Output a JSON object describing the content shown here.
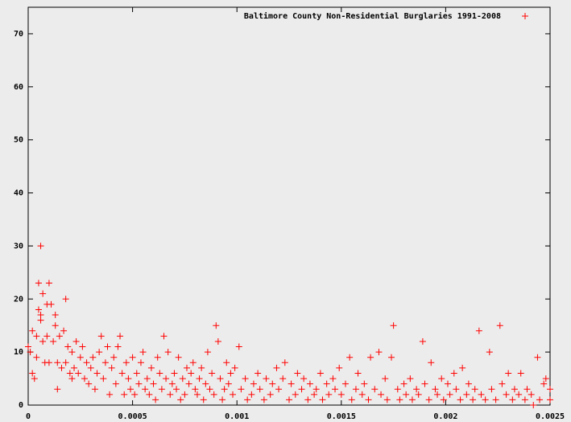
{
  "chart_data": {
    "type": "scatter",
    "x": [
      0,
      1e-05,
      2e-05,
      2e-05,
      3e-05,
      4e-05,
      4e-05,
      5e-05,
      5e-05,
      6e-05,
      6e-05,
      6e-05,
      7e-05,
      7e-05,
      8e-05,
      9e-05,
      9e-05,
      0.0001,
      0.0001,
      0.00011,
      0.00012,
      0.00013,
      0.00013,
      0.00014,
      0.00014,
      0.00015,
      0.00016,
      0.00017,
      0.00018,
      0.00018,
      0.00019,
      0.0002,
      0.00021,
      0.00021,
      0.00022,
      0.00023,
      0.00024,
      0.00025,
      0.00026,
      0.00027,
      0.00028,
      0.00029,
      0.0003,
      0.00031,
      0.00032,
      0.00033,
      0.00034,
      0.00035,
      0.00036,
      0.00037,
      0.00038,
      0.00039,
      0.0004,
      0.00041,
      0.00042,
      0.00043,
      0.00044,
      0.00045,
      0.00046,
      0.00047,
      0.00048,
      0.00049,
      0.0005,
      0.00051,
      0.00052,
      0.00053,
      0.00054,
      0.00055,
      0.00056,
      0.00057,
      0.00058,
      0.00059,
      0.0006,
      0.00061,
      0.00062,
      0.00063,
      0.00064,
      0.00065,
      0.00066,
      0.00067,
      0.00068,
      0.00069,
      0.0007,
      0.00071,
      0.00072,
      0.00073,
      0.00074,
      0.00075,
      0.00076,
      0.00077,
      0.00078,
      0.00079,
      0.0008,
      0.00081,
      0.00082,
      0.00083,
      0.00084,
      0.00085,
      0.00086,
      0.00087,
      0.00088,
      0.00089,
      0.0009,
      0.00091,
      0.00092,
      0.00093,
      0.00094,
      0.00095,
      0.00096,
      0.00097,
      0.00098,
      0.00099,
      0.00101,
      0.00102,
      0.00104,
      0.00105,
      0.00107,
      0.00108,
      0.0011,
      0.00111,
      0.00113,
      0.00114,
      0.00116,
      0.00117,
      0.00119,
      0.0012,
      0.00122,
      0.00123,
      0.00125,
      0.00126,
      0.00128,
      0.00129,
      0.00131,
      0.00132,
      0.00134,
      0.00135,
      0.00137,
      0.00138,
      0.0014,
      0.00141,
      0.00143,
      0.00144,
      0.00146,
      0.00147,
      0.00149,
      0.0015,
      0.00152,
      0.00154,
      0.00155,
      0.00157,
      0.00158,
      0.0016,
      0.00161,
      0.00163,
      0.00164,
      0.00166,
      0.00168,
      0.00169,
      0.00171,
      0.00172,
      0.00174,
      0.00175,
      0.00177,
      0.00178,
      0.0018,
      0.00181,
      0.00183,
      0.00184,
      0.00186,
      0.00187,
      0.00189,
      0.0019,
      0.00192,
      0.00193,
      0.00195,
      0.00196,
      0.00198,
      0.00199,
      0.00201,
      0.00202,
      0.00204,
      0.00205,
      0.00207,
      0.00208,
      0.0021,
      0.00211,
      0.00213,
      0.00214,
      0.00216,
      0.00217,
      0.00219,
      0.00221,
      0.00222,
      0.00224,
      0.00226,
      0.00227,
      0.00229,
      0.0023,
      0.00232,
      0.00233,
      0.00235,
      0.00236,
      0.00238,
      0.00239,
      0.00241,
      0.00242,
      0.00244,
      0.00245,
      0.00247,
      0.00248,
      0.0025,
      0.0025
    ],
    "series": [
      {
        "name": "Baltimore County Non-Residential Burglaries 1991-2008",
        "color": "#ff0000",
        "values": [
          11,
          10,
          6,
          14,
          5,
          9,
          13,
          23,
          18,
          17,
          16,
          30,
          21,
          12,
          8,
          19,
          13,
          23,
          8,
          19,
          12,
          15,
          17,
          3,
          8,
          13,
          7,
          14,
          20,
          8,
          11,
          6,
          10,
          5,
          7,
          12,
          6,
          9,
          11,
          5,
          8,
          4,
          7,
          9,
          3,
          6,
          10,
          13,
          5,
          8,
          11,
          2,
          7,
          9,
          4,
          11,
          13,
          6,
          2,
          8,
          5,
          3,
          9,
          2,
          6,
          4,
          8,
          10,
          3,
          5,
          2,
          7,
          4,
          1,
          9,
          6,
          3,
          13,
          5,
          10,
          2,
          4,
          6,
          3,
          9,
          1,
          5,
          2,
          7,
          4,
          6,
          8,
          3,
          2,
          5,
          7,
          1,
          4,
          10,
          3,
          6,
          2,
          15,
          12,
          5,
          1,
          3,
          8,
          4,
          6,
          2,
          7,
          11,
          3,
          5,
          1,
          2,
          4,
          6,
          3,
          1,
          5,
          2,
          4,
          7,
          3,
          5,
          8,
          1,
          4,
          2,
          6,
          3,
          5,
          1,
          4,
          2,
          3,
          6,
          1,
          4,
          2,
          5,
          3,
          7,
          2,
          4,
          9,
          1,
          3,
          6,
          2,
          4,
          1,
          9,
          3,
          10,
          2,
          5,
          1,
          9,
          15,
          3,
          1,
          4,
          2,
          5,
          1,
          3,
          2,
          12,
          4,
          1,
          8,
          3,
          2,
          5,
          1,
          4,
          2,
          6,
          3,
          1,
          7,
          2,
          4,
          1,
          3,
          14,
          2,
          1,
          10,
          3,
          1,
          15,
          4,
          2,
          6,
          1,
          3,
          2,
          6,
          1,
          3,
          2,
          0,
          9,
          1,
          4,
          5,
          1,
          3
        ]
      }
    ],
    "xlim": [
      0,
      0.0025
    ],
    "xticks": [
      0,
      0.0005,
      0.001,
      0.0015,
      0.002,
      0.0025
    ],
    "ylim": [
      0,
      75
    ],
    "yticks": [
      0,
      10,
      20,
      30,
      40,
      50,
      60,
      70
    ],
    "legend": "top-right"
  }
}
